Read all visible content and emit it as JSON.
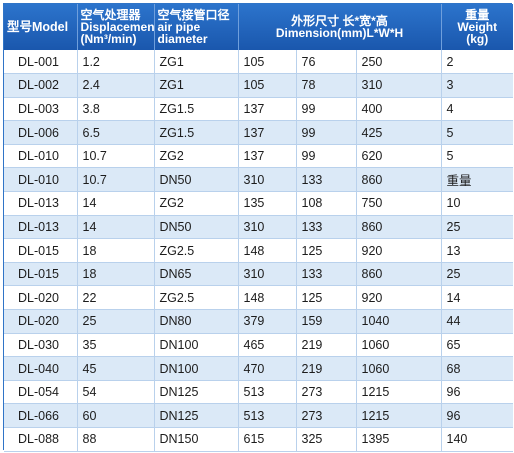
{
  "header": {
    "model": "型号Model",
    "displacement_line1": "空气处理器",
    "displacement_line2": "Displacement",
    "displacement_line3": "(Nm³/min)",
    "pipe_line1": "空气接管口径",
    "pipe_line2": "air pipe",
    "pipe_line3": "diameter",
    "dimension_line1": "外形尺寸 长*宽*高",
    "dimension_line2": "Dimension(mm)L*W*H",
    "weight_line1": "重量",
    "weight_line2": "Weight",
    "weight_line3": "(kg)"
  },
  "rows": [
    {
      "model": "DL-001",
      "displacement": "1.2",
      "pipe": "ZG1",
      "l": "105",
      "w": "76",
      "h": "250",
      "weight": "2"
    },
    {
      "model": "DL-002",
      "displacement": "2.4",
      "pipe": "ZG1",
      "l": "105",
      "w": "78",
      "h": "310",
      "weight": "3"
    },
    {
      "model": "DL-003",
      "displacement": "3.8",
      "pipe": "ZG1.5",
      "l": "137",
      "w": "99",
      "h": "400",
      "weight": "4"
    },
    {
      "model": "DL-006",
      "displacement": "6.5",
      "pipe": "ZG1.5",
      "l": "137",
      "w": "99",
      "h": "425",
      "weight": "5"
    },
    {
      "model": "DL-010",
      "displacement": "10.7",
      "pipe": "ZG2",
      "l": "137",
      "w": "99",
      "h": "620",
      "weight": "5"
    },
    {
      "model": "DL-010",
      "displacement": "10.7",
      "pipe": "DN50",
      "l": "310",
      "w": "133",
      "h": "860",
      "weight": "重量"
    },
    {
      "model": "DL-013",
      "displacement": "14",
      "pipe": "ZG2",
      "l": "135",
      "w": "108",
      "h": "750",
      "weight": "10"
    },
    {
      "model": "DL-013",
      "displacement": "14",
      "pipe": "DN50",
      "l": "310",
      "w": "133",
      "h": "860",
      "weight": "25"
    },
    {
      "model": "DL-015",
      "displacement": "18",
      "pipe": "ZG2.5",
      "l": "148",
      "w": "125",
      "h": "920",
      "weight": "13"
    },
    {
      "model": "DL-015",
      "displacement": "18",
      "pipe": "DN65",
      "l": "310",
      "w": "133",
      "h": "860",
      "weight": "25"
    },
    {
      "model": "DL-020",
      "displacement": "22",
      "pipe": "ZG2.5",
      "l": "148",
      "w": "125",
      "h": "920",
      "weight": "14"
    },
    {
      "model": "DL-020",
      "displacement": "25",
      "pipe": "DN80",
      "l": "379",
      "w": "159",
      "h": "1040",
      "weight": "44"
    },
    {
      "model": "DL-030",
      "displacement": "35",
      "pipe": "DN100",
      "l": "465",
      "w": "219",
      "h": "1060",
      "weight": "65"
    },
    {
      "model": "DL-040",
      "displacement": "45",
      "pipe": "DN100",
      "l": "470",
      "w": "219",
      "h": "1060",
      "weight": "68"
    },
    {
      "model": "DL-054",
      "displacement": "54",
      "pipe": "DN125",
      "l": "513",
      "w": "273",
      "h": "1215",
      "weight": "96"
    },
    {
      "model": "DL-066",
      "displacement": "60",
      "pipe": "DN125",
      "l": "513",
      "w": "273",
      "h": "1215",
      "weight": "96"
    },
    {
      "model": "DL-088",
      "displacement": "88",
      "pipe": "DN150",
      "l": "615",
      "w": "325",
      "h": "1395",
      "weight": "140"
    }
  ],
  "colors": {
    "header_bg": "#1e5fb8",
    "header_text": "#ffffff",
    "stripe": "#dbe9f7",
    "border": "#b9d1ec"
  }
}
